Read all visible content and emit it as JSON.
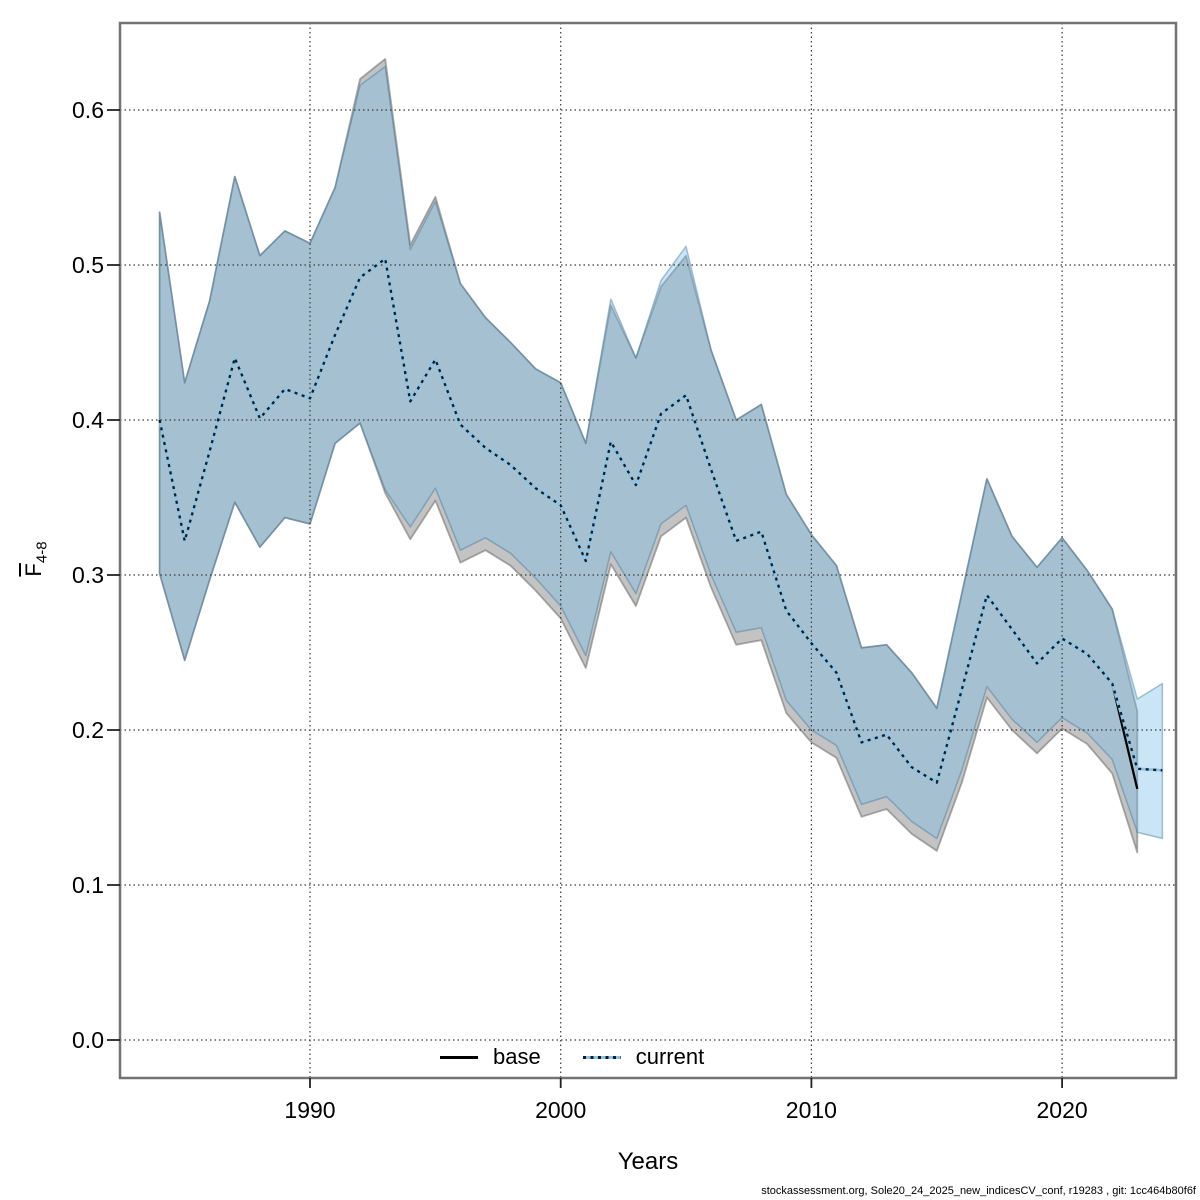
{
  "axes": {
    "x": {
      "label": "Years",
      "ticks": [
        {
          "label": "1990",
          "value": 1990
        },
        {
          "label": "2000",
          "value": 2000
        },
        {
          "label": "2010",
          "value": 2010
        },
        {
          "label": "2020",
          "value": 2020
        }
      ]
    },
    "y": {
      "label_main": "F",
      "label_sub": "4-8",
      "ticks": [
        {
          "label": "0.0",
          "value": 0.0
        },
        {
          "label": "0.1",
          "value": 0.1
        },
        {
          "label": "0.2",
          "value": 0.2
        },
        {
          "label": "0.3",
          "value": 0.3
        },
        {
          "label": "0.4",
          "value": 0.4
        },
        {
          "label": "0.5",
          "value": 0.5
        },
        {
          "label": "0.6",
          "value": 0.6
        }
      ]
    }
  },
  "legend": [
    {
      "label": "base",
      "style": "solid",
      "color": "#000000"
    },
    {
      "label": "current",
      "style": "dotted",
      "color": "#8cc5e8"
    }
  ],
  "footer": "stockassessment.org, Sole20_24_2025_new_indicesCV_conf, r19283 , git: 1cc464b80f6f",
  "colors": {
    "band_base_fill": "rgba(105,105,105,0.40)",
    "band_base_stroke": "rgba(105,105,105,0.55)",
    "band_current_fill": "rgba(112,186,231,0.38)",
    "band_current_stroke": "rgba(70,120,155,0.45)",
    "line_base": "#000000",
    "line_current_core": "#8cc5e8",
    "line_current_dots": "#141c24",
    "frame": "#737373",
    "grid": "#3a3a3a",
    "tick": "#222222"
  },
  "chart_data": {
    "type": "line",
    "title": "",
    "xlabel": "Years",
    "ylabel": "Fbar(4-8)",
    "x": [
      1984,
      1985,
      1986,
      1987,
      1988,
      1989,
      1990,
      1991,
      1992,
      1993,
      1994,
      1995,
      1996,
      1997,
      1998,
      1999,
      2000,
      2001,
      2002,
      2003,
      2004,
      2005,
      2006,
      2007,
      2008,
      2009,
      2010,
      2011,
      2012,
      2013,
      2014,
      2015,
      2016,
      2017,
      2018,
      2019,
      2020,
      2021,
      2022,
      2023,
      2024
    ],
    "xlim": [
      1982.4,
      2024.6
    ],
    "ylim": [
      -0.025,
      0.656
    ],
    "grid": true,
    "legend_position": "bottom-center",
    "series": [
      {
        "name": "base",
        "x_end": 2023,
        "values": [
          0.4,
          0.322,
          0.38,
          0.44,
          0.401,
          0.42,
          0.414,
          0.455,
          0.492,
          0.504,
          0.412,
          0.439,
          0.397,
          0.382,
          0.371,
          0.356,
          0.345,
          0.309,
          0.386,
          0.358,
          0.404,
          0.416,
          0.368,
          0.322,
          0.328,
          0.277,
          0.256,
          0.237,
          0.192,
          0.197,
          0.176,
          0.166,
          0.226,
          0.287,
          0.265,
          0.243,
          0.259,
          0.249,
          0.23,
          0.162
        ],
        "lower": [
          0.301,
          0.245,
          0.297,
          0.347,
          0.318,
          0.337,
          0.333,
          0.385,
          0.398,
          0.353,
          0.323,
          0.348,
          0.308,
          0.316,
          0.306,
          0.29,
          0.272,
          0.24,
          0.307,
          0.28,
          0.325,
          0.337,
          0.292,
          0.255,
          0.258,
          0.211,
          0.192,
          0.182,
          0.144,
          0.149,
          0.133,
          0.122,
          0.166,
          0.221,
          0.2,
          0.185,
          0.201,
          0.191,
          0.172,
          0.121
        ],
        "upper": [
          0.534,
          0.424,
          0.477,
          0.557,
          0.506,
          0.522,
          0.514,
          0.55,
          0.62,
          0.633,
          0.513,
          0.544,
          0.488,
          0.466,
          0.45,
          0.433,
          0.424,
          0.385,
          0.474,
          0.44,
          0.486,
          0.506,
          0.445,
          0.4,
          0.41,
          0.352,
          0.326,
          0.306,
          0.253,
          0.255,
          0.237,
          0.214,
          0.288,
          0.362,
          0.325,
          0.305,
          0.324,
          0.303,
          0.278,
          0.212
        ]
      },
      {
        "name": "current",
        "x_end": 2024,
        "values": [
          0.4,
          0.322,
          0.38,
          0.44,
          0.401,
          0.42,
          0.414,
          0.455,
          0.492,
          0.504,
          0.412,
          0.439,
          0.397,
          0.382,
          0.371,
          0.356,
          0.345,
          0.309,
          0.386,
          0.358,
          0.404,
          0.416,
          0.368,
          0.322,
          0.328,
          0.277,
          0.256,
          0.237,
          0.192,
          0.197,
          0.176,
          0.166,
          0.226,
          0.287,
          0.265,
          0.243,
          0.259,
          0.249,
          0.23,
          0.175,
          0.174
        ],
        "lower": [
          0.301,
          0.245,
          0.297,
          0.347,
          0.318,
          0.337,
          0.333,
          0.385,
          0.398,
          0.355,
          0.331,
          0.356,
          0.316,
          0.324,
          0.314,
          0.298,
          0.28,
          0.248,
          0.315,
          0.288,
          0.333,
          0.345,
          0.3,
          0.263,
          0.266,
          0.219,
          0.2,
          0.19,
          0.152,
          0.157,
          0.141,
          0.13,
          0.174,
          0.228,
          0.207,
          0.192,
          0.208,
          0.198,
          0.181,
          0.134,
          0.13
        ],
        "upper": [
          0.534,
          0.424,
          0.477,
          0.557,
          0.506,
          0.522,
          0.514,
          0.55,
          0.616,
          0.628,
          0.51,
          0.541,
          0.488,
          0.466,
          0.45,
          0.433,
          0.424,
          0.385,
          0.478,
          0.44,
          0.49,
          0.512,
          0.445,
          0.4,
          0.41,
          0.352,
          0.326,
          0.306,
          0.253,
          0.255,
          0.237,
          0.214,
          0.288,
          0.362,
          0.325,
          0.305,
          0.324,
          0.303,
          0.278,
          0.22,
          0.23
        ]
      }
    ]
  }
}
